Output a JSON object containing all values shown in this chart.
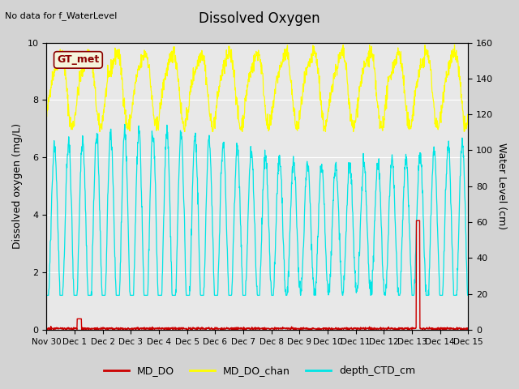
{
  "title": "Dissolved Oxygen",
  "top_left_note": "No data for f_WaterLevel",
  "gt_label": "GT_met",
  "xlabel_ticks": [
    "Nov 30",
    "Dec 1",
    "Dec 2",
    "Dec 3",
    "Dec 4",
    "Dec 5",
    "Dec 6",
    "Dec 7",
    "Dec 8",
    "Dec 9",
    "Dec 10",
    "Dec 11",
    "Dec 12",
    "Dec 13",
    "Dec 14",
    "Dec 15"
  ],
  "tick_positions": [
    0,
    1,
    2,
    3,
    4,
    5,
    6,
    7,
    8,
    9,
    10,
    11,
    12,
    13,
    14,
    15
  ],
  "ylabel_left": "Dissolved oxygen (mg/L)",
  "ylabel_right": "Water Level (cm)",
  "ylim_left": [
    0.0,
    10.0
  ],
  "ylim_right": [
    0,
    160
  ],
  "xlim": [
    0,
    15
  ],
  "background_color": "#d3d3d3",
  "plot_bg_color": "#e8e8e8",
  "md_do_color": "#cc0000",
  "md_do_chan_color": "#ffff00",
  "depth_ctd_color": "#00e5e5",
  "legend_labels": [
    "MD_DO",
    "MD_DO_chan",
    "depth_CTD_cm"
  ]
}
